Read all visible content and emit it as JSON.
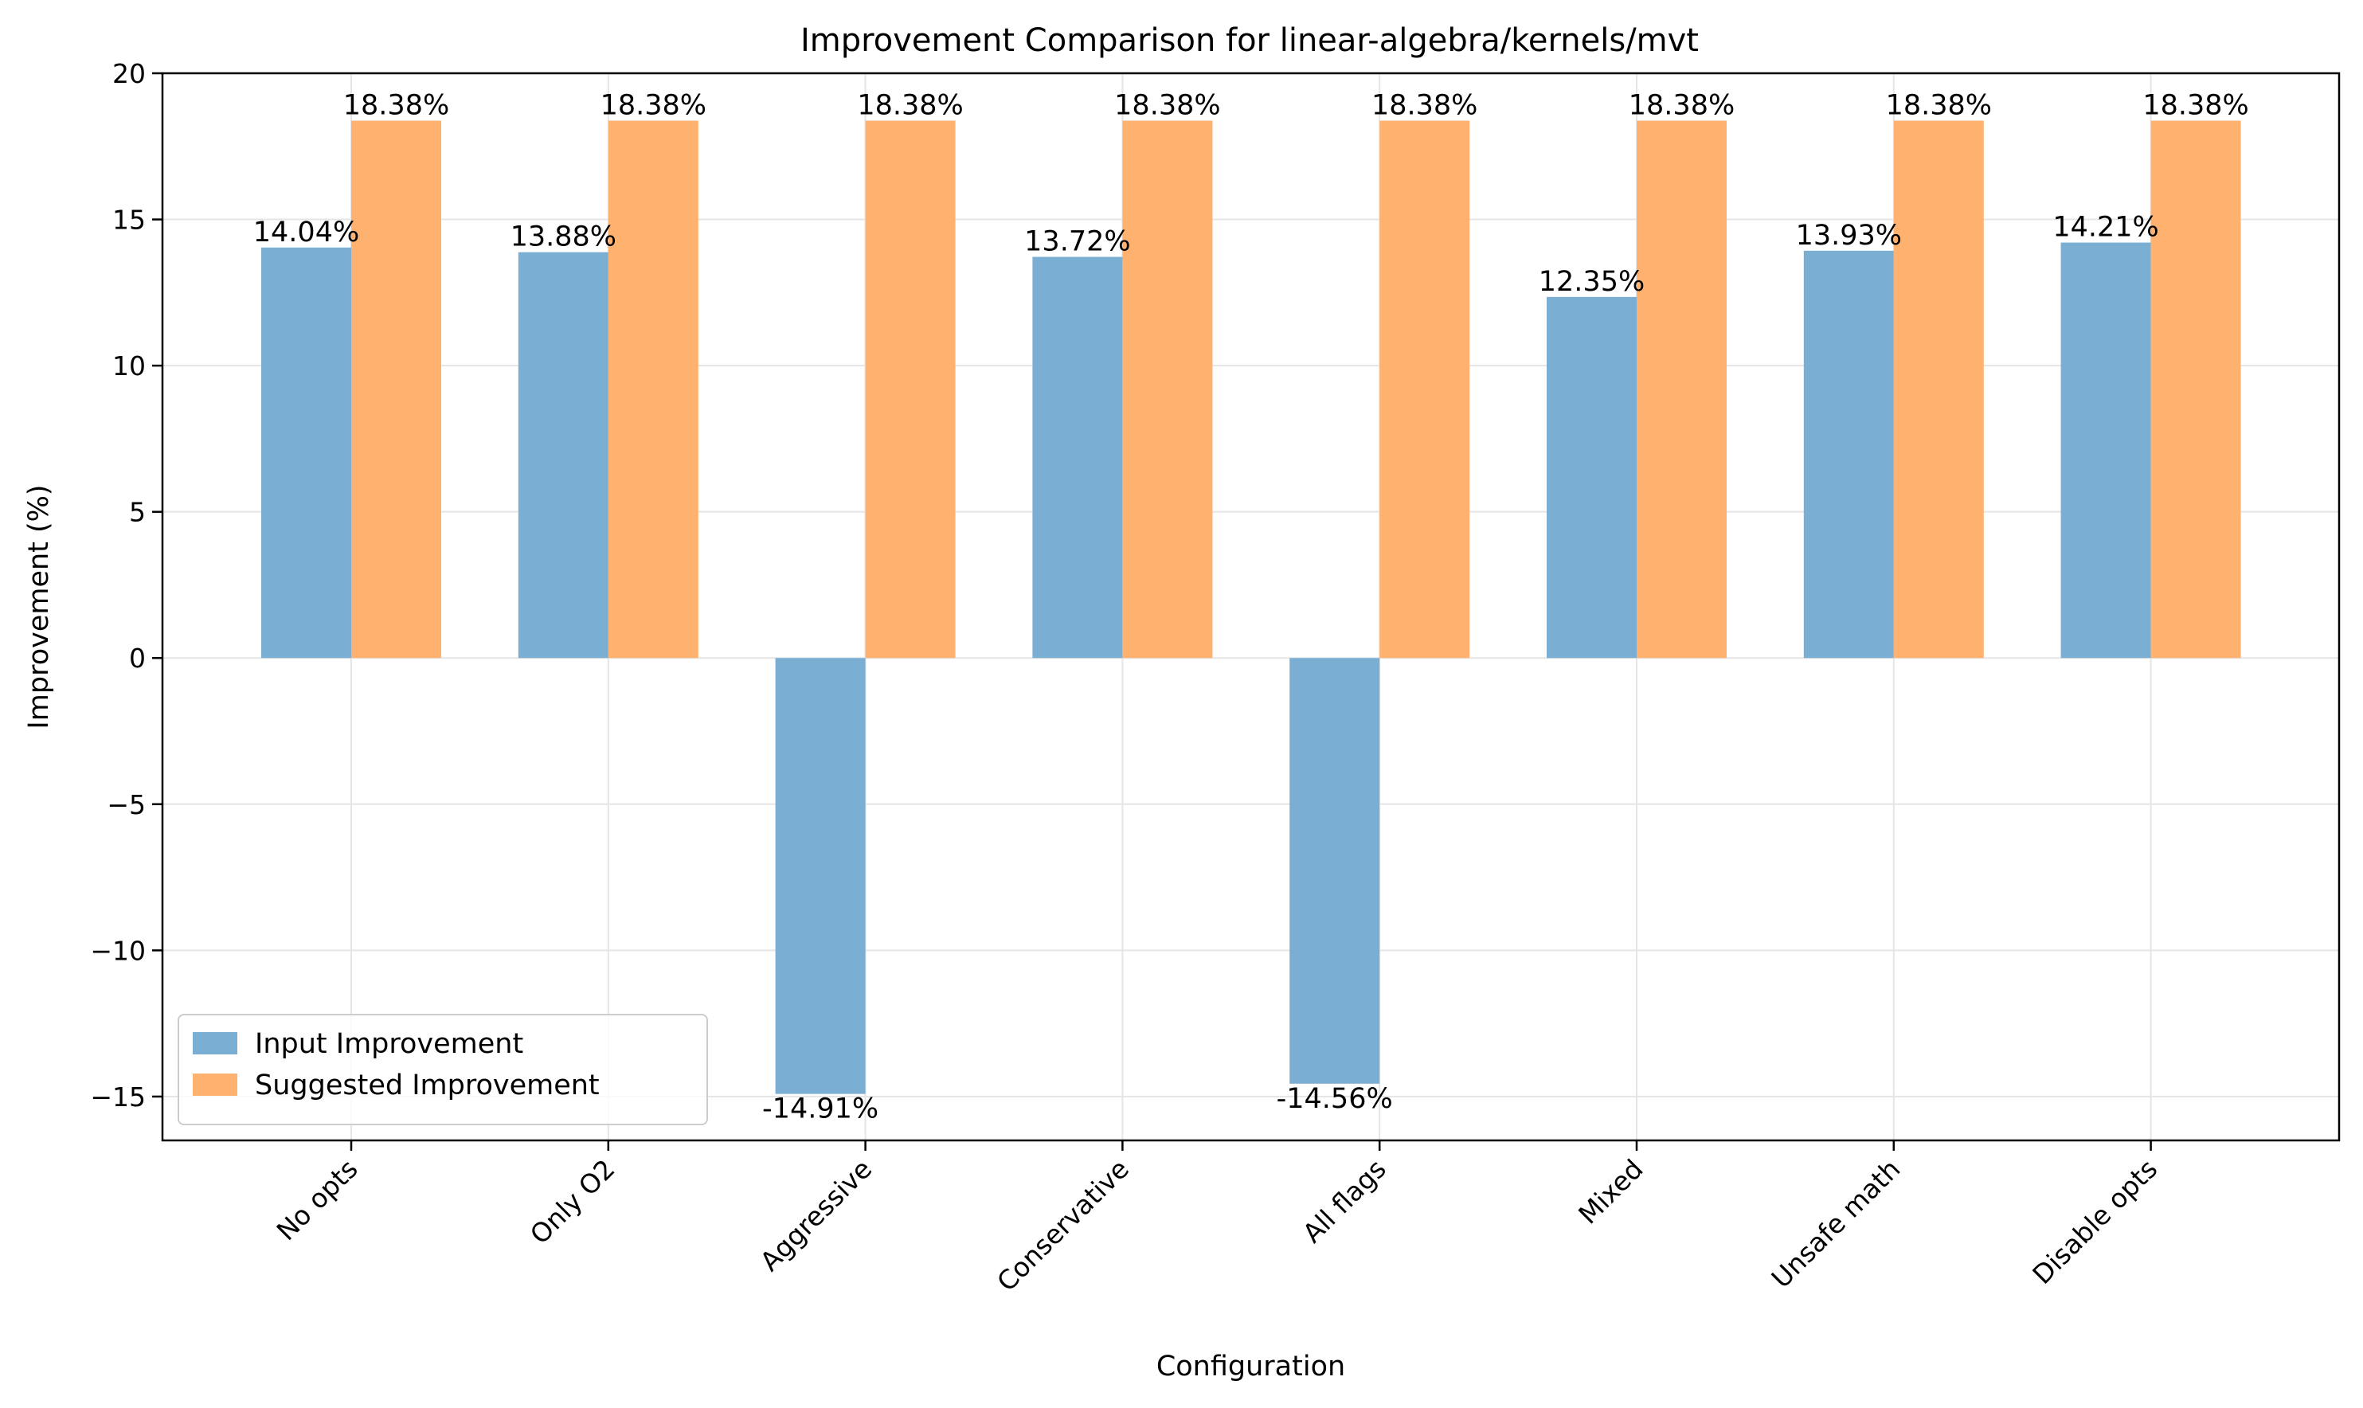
{
  "chart_data": {
    "type": "bar",
    "title": "Improvement Comparison for linear-algebra/kernels/mvt",
    "xlabel": "Configuration",
    "ylabel": "Improvement (%)",
    "categories": [
      "No opts",
      "Only O2",
      "Aggressive",
      "Conservative",
      "All flags",
      "Mixed",
      "Unsafe math",
      "Disable opts"
    ],
    "series": [
      {
        "name": "Input Improvement",
        "color": "#7aaed3",
        "values": [
          14.04,
          13.88,
          -14.91,
          13.72,
          -14.56,
          12.35,
          13.93,
          14.21
        ],
        "labels": [
          "14.04%",
          "13.88%",
          "-14.91%",
          "13.72%",
          "-14.56%",
          "12.35%",
          "13.93%",
          "14.21%"
        ]
      },
      {
        "name": "Suggested Improvement",
        "color": "#ffb26f",
        "values": [
          18.38,
          18.38,
          18.38,
          18.38,
          18.38,
          18.38,
          18.38,
          18.38
        ],
        "labels": [
          "18.38%",
          "18.38%",
          "18.38%",
          "18.38%",
          "18.38%",
          "18.38%",
          "18.38%",
          "18.38%"
        ]
      }
    ],
    "ylim": [
      -16.5,
      20
    ],
    "yticks": [
      20,
      15,
      10,
      5,
      0,
      -5,
      -10,
      -15
    ],
    "ytick_labels": [
      "20",
      "15",
      "10",
      "5",
      "0",
      "−5",
      "−10",
      "−15"
    ],
    "grid": true,
    "legend_position": "lower-left"
  }
}
